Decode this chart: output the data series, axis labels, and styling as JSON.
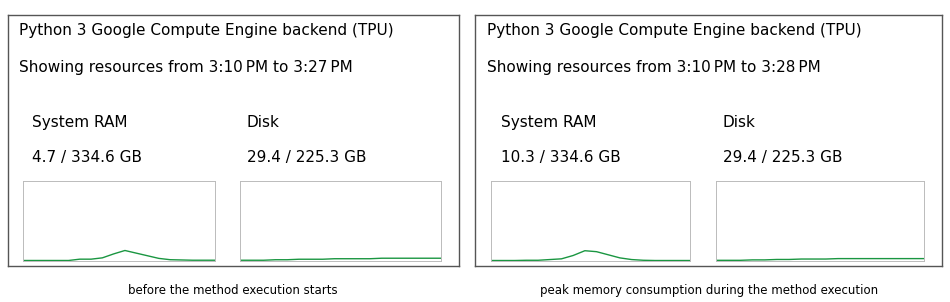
{
  "panel1": {
    "title_line1": "Python 3 Google Compute Engine backend (TPU)",
    "title_line2": "Showing resources from 3:10 PM to 3:27 PM",
    "ram_label": "System RAM",
    "ram_value": "4.7 / 334.6 GB",
    "disk_label": "Disk",
    "disk_value": "29.4 / 225.3 GB",
    "caption": "before the method execution starts",
    "ram_line": [
      0.0,
      0.0,
      0.0,
      0.0,
      0.0,
      0.005,
      0.005,
      0.01,
      0.025,
      0.038,
      0.028,
      0.018,
      0.008,
      0.003,
      0.002,
      0.001,
      0.001,
      0.001
    ],
    "disk_line": [
      0.018,
      0.018,
      0.018,
      0.019,
      0.019,
      0.02,
      0.02,
      0.02,
      0.021,
      0.021,
      0.021,
      0.021,
      0.022,
      0.022,
      0.022,
      0.022,
      0.022,
      0.022
    ]
  },
  "panel2": {
    "title_line1": "Python 3 Google Compute Engine backend (TPU)",
    "title_line2": "Showing resources from 3:10 PM to 3:28 PM",
    "ram_label": "System RAM",
    "ram_value": "10.3 / 334.6 GB",
    "disk_label": "Disk",
    "disk_value": "29.4 / 225.3 GB",
    "caption": "peak memory consumption during the method execution",
    "ram_line": [
      0.001,
      0.001,
      0.001,
      0.002,
      0.002,
      0.005,
      0.008,
      0.022,
      0.042,
      0.038,
      0.025,
      0.012,
      0.005,
      0.002,
      0.001,
      0.001,
      0.001,
      0.001
    ],
    "disk_line": [
      0.022,
      0.022,
      0.022,
      0.023,
      0.023,
      0.024,
      0.024,
      0.025,
      0.025,
      0.025,
      0.026,
      0.026,
      0.026,
      0.026,
      0.026,
      0.026,
      0.026,
      0.026
    ]
  },
  "line_color": "#1a9641",
  "box_edge_color": "#bbbbbb",
  "outer_border_color": "#555555",
  "bg_color": "#ffffff",
  "text_color": "#000000",
  "caption_fontsize": 8.5,
  "title_fontsize": 11,
  "label_fontsize": 11,
  "value_fontsize": 11
}
